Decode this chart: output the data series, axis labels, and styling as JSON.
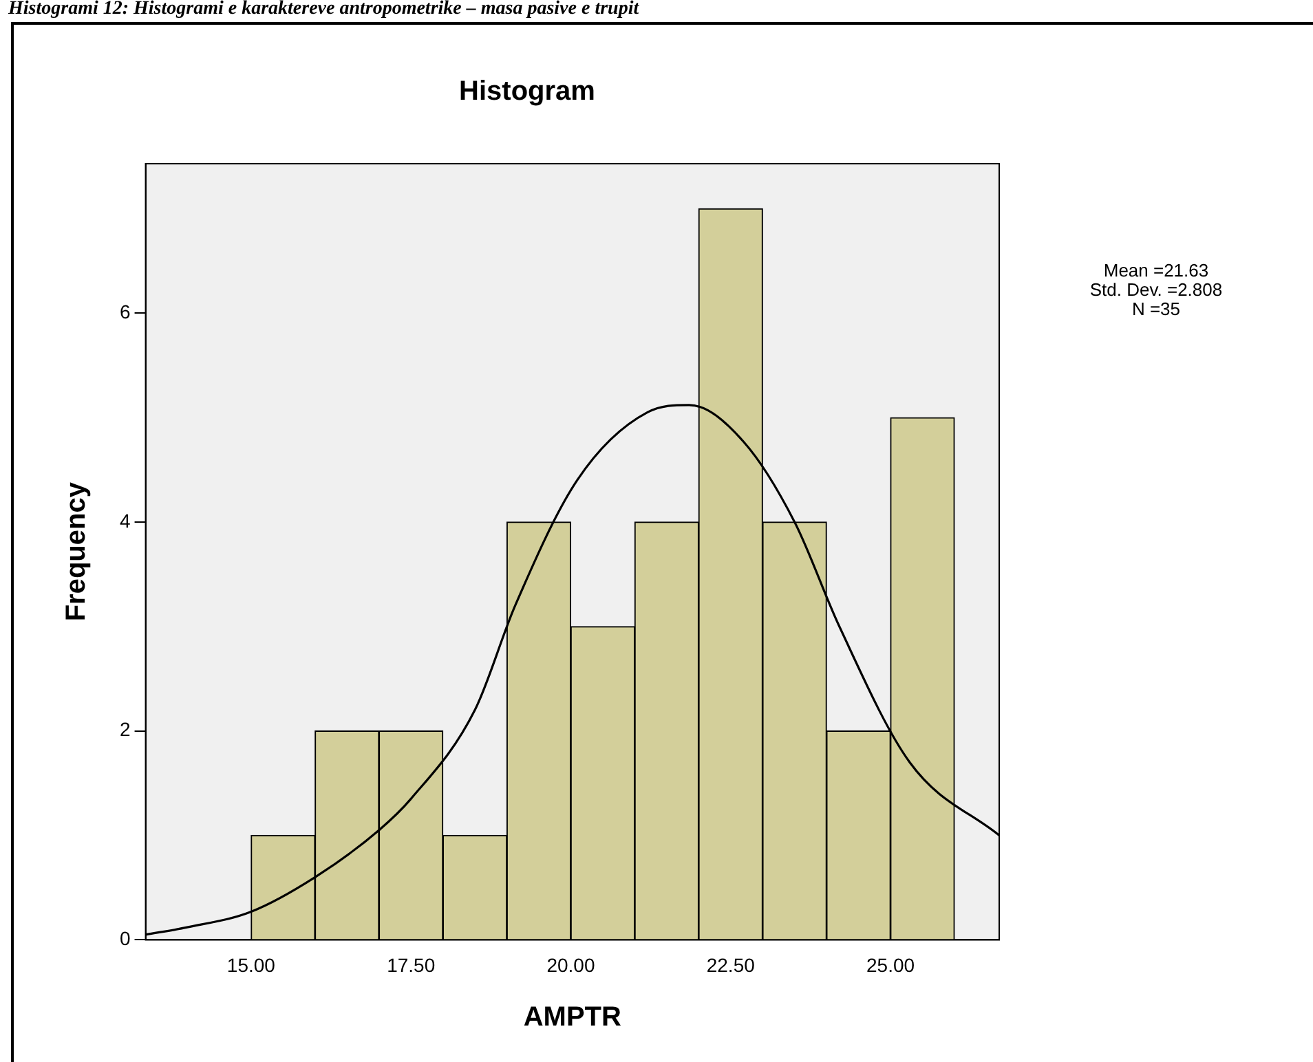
{
  "chart_data": {
    "type": "histogram",
    "title": "Histogram",
    "xlabel": "AMPTR",
    "ylabel": "Frequency",
    "bins": [
      15,
      16,
      17,
      18,
      19,
      20,
      21,
      22,
      23,
      24,
      25,
      26
    ],
    "values": [
      1,
      2,
      2,
      1,
      4,
      3,
      4,
      7,
      4,
      2,
      5
    ],
    "color": "#d3cf9a",
    "series": [
      {
        "type": "line",
        "color": "#000000",
        "x": [
          13.35,
          14,
          15,
          16,
          17,
          17.5,
          18.5,
          19.13,
          20.1,
          21.2,
          21.85,
          22.7,
          23.5,
          24.2,
          25.3,
          26.7
        ],
        "values": [
          0.05,
          0.12,
          0.27,
          0.6,
          1.05,
          1.35,
          2.2,
          3.2,
          4.4,
          5.05,
          5.12,
          4.77,
          4.0,
          3.0,
          1.7,
          1.0
        ]
      }
    ],
    "xlim": [
      13.35,
      26.7
    ],
    "ylim": [
      0,
      7.43
    ],
    "xticks": [
      {
        "value": 15,
        "label": "15.00"
      },
      {
        "value": 17.5,
        "label": "17.50"
      },
      {
        "value": 20,
        "label": "20.00"
      },
      {
        "value": 22.5,
        "label": "22.50"
      },
      {
        "value": 25,
        "label": "25.00"
      }
    ],
    "yticks": [
      0,
      2,
      4,
      6
    ],
    "grid": false,
    "legend": false,
    "marker": "none",
    "line_style": "solid",
    "annotations": [
      "Histogrami 12: Histogrami e karaktereve antropometrike – masa pasive e trupit",
      "Mean =21.63\nStd. Dev. =2.808\nN =35"
    ]
  }
}
